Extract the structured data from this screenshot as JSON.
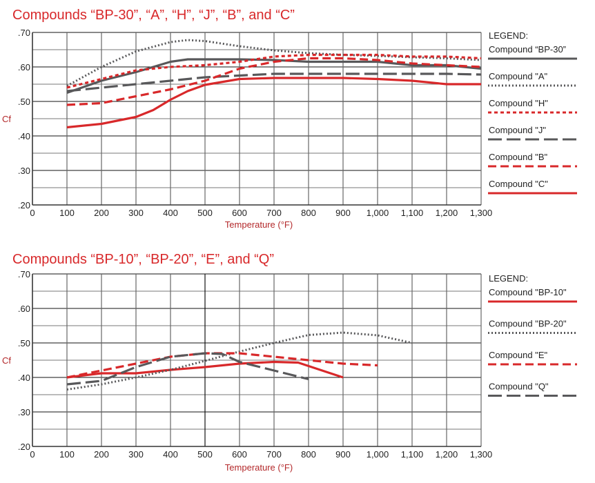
{
  "chart_data": [
    {
      "type": "line",
      "title": "Compounds “BP-30”, “A”, “H”, “J”, “B”, and “C”",
      "xlabel": "Temperature (°F)",
      "ylabel": "Cf",
      "xlim": [
        0,
        1300
      ],
      "ylim": [
        0.2,
        0.7
      ],
      "xticks": [
        0,
        100,
        200,
        300,
        400,
        500,
        600,
        700,
        800,
        900,
        1000,
        1100,
        1200,
        1300
      ],
      "xtick_labels": [
        "0",
        "100",
        "200",
        "300",
        "400",
        "500",
        "600",
        "700",
        "800",
        "900",
        "1,000",
        "1,100",
        "1,200",
        "1,300"
      ],
      "yticks": [
        0.2,
        0.3,
        0.4,
        0.5,
        0.6,
        0.7
      ],
      "ytick_labels": [
        ".20",
        ".30",
        ".40",
        ".50",
        ".60",
        ".70"
      ],
      "grid": true,
      "legend_title": "LEGEND:",
      "legend_placement": "right",
      "series": [
        {
          "name": "Compound “BP-30”",
          "color": "#58585a",
          "style": "solid",
          "x": [
            100,
            200,
            300,
            400,
            450,
            500,
            600,
            700,
            800,
            900,
            1000,
            1100,
            1200,
            1300
          ],
          "y": [
            0.525,
            0.56,
            0.585,
            0.615,
            0.622,
            0.622,
            0.622,
            0.62,
            0.615,
            0.615,
            0.615,
            0.605,
            0.605,
            0.595
          ]
        },
        {
          "name": "Compound \"A\"",
          "color": "#58585a",
          "style": "dotted",
          "x": [
            100,
            200,
            300,
            400,
            450,
            500,
            600,
            700,
            800,
            900,
            1000,
            1100,
            1200,
            1300
          ],
          "y": [
            0.545,
            0.6,
            0.645,
            0.672,
            0.678,
            0.675,
            0.66,
            0.648,
            0.64,
            0.635,
            0.632,
            0.628,
            0.625,
            0.62
          ]
        },
        {
          "name": "Compound \"H\"",
          "color": "#d8282a",
          "style": "short-dash",
          "x": [
            100,
            200,
            300,
            400,
            500,
            600,
            700,
            800,
            900,
            1000,
            1100,
            1200,
            1300
          ],
          "y": [
            0.54,
            0.565,
            0.59,
            0.6,
            0.605,
            0.615,
            0.63,
            0.635,
            0.635,
            0.635,
            0.63,
            0.63,
            0.625
          ]
        },
        {
          "name": "Compound \"J\"",
          "color": "#58585a",
          "style": "long-dash",
          "x": [
            100,
            200,
            300,
            400,
            500,
            600,
            700,
            800,
            900,
            1000,
            1100,
            1200,
            1300
          ],
          "y": [
            0.53,
            0.54,
            0.55,
            0.56,
            0.57,
            0.575,
            0.58,
            0.58,
            0.58,
            0.58,
            0.58,
            0.58,
            0.578
          ]
        },
        {
          "name": "Compound \"B\"",
          "color": "#d8282a",
          "style": "dashed",
          "x": [
            100,
            200,
            300,
            400,
            500,
            600,
            700,
            800,
            900,
            1000,
            1100,
            1200,
            1300
          ],
          "y": [
            0.49,
            0.495,
            0.515,
            0.535,
            0.56,
            0.595,
            0.615,
            0.625,
            0.625,
            0.62,
            0.61,
            0.605,
            0.6
          ]
        },
        {
          "name": "Compound \"C\"",
          "color": "#d8282a",
          "style": "solid",
          "x": [
            100,
            200,
            300,
            350,
            400,
            450,
            500,
            600,
            700,
            800,
            900,
            1000,
            1100,
            1200,
            1300
          ],
          "y": [
            0.425,
            0.435,
            0.455,
            0.475,
            0.505,
            0.53,
            0.548,
            0.565,
            0.568,
            0.568,
            0.568,
            0.565,
            0.56,
            0.55,
            0.55
          ]
        }
      ]
    },
    {
      "type": "line",
      "title": "Compounds “BP-10”, “BP-20”, “E”, and “Q”",
      "xlabel": "Temperature (°F)",
      "ylabel": "Cf",
      "xlim": [
        0,
        1300
      ],
      "ylim": [
        0.2,
        0.7
      ],
      "xticks": [
        0,
        100,
        200,
        300,
        400,
        500,
        600,
        700,
        800,
        900,
        1000,
        1100,
        1200,
        1300
      ],
      "xtick_labels": [
        "0",
        "100",
        "200",
        "300",
        "400",
        "500",
        "600",
        "700",
        "800",
        "900",
        "1,000",
        "1,100",
        "1,200",
        "1,300"
      ],
      "yticks": [
        0.2,
        0.3,
        0.4,
        0.5,
        0.6,
        0.7
      ],
      "ytick_labels": [
        ".20",
        ".30",
        ".40",
        ".50",
        ".60",
        ".70"
      ],
      "grid": true,
      "legend_title": "LEGEND:",
      "legend_placement": "right",
      "series": [
        {
          "name": "Compound \"BP-10\"",
          "color": "#d8282a",
          "style": "solid",
          "x": [
            100,
            200,
            300,
            400,
            500,
            600,
            700,
            770,
            900
          ],
          "y": [
            0.4,
            0.412,
            0.412,
            0.422,
            0.43,
            0.44,
            0.445,
            0.443,
            0.4
          ]
        },
        {
          "name": "Compound \"BP-20\"",
          "color": "#58585a",
          "style": "dotted",
          "x": [
            100,
            200,
            300,
            400,
            500,
            600,
            700,
            800,
            900,
            1000,
            1100
          ],
          "y": [
            0.365,
            0.38,
            0.4,
            0.422,
            0.448,
            0.475,
            0.5,
            0.523,
            0.53,
            0.522,
            0.5
          ]
        },
        {
          "name": "Compound \"E\"",
          "color": "#d8282a",
          "style": "dashed",
          "x": [
            100,
            200,
            300,
            400,
            500,
            600,
            700,
            800,
            900,
            1000
          ],
          "y": [
            0.4,
            0.42,
            0.44,
            0.46,
            0.47,
            0.47,
            0.46,
            0.45,
            0.44,
            0.435
          ]
        },
        {
          "name": "Compound \"Q\"",
          "color": "#58585a",
          "style": "long-dash",
          "x": [
            100,
            200,
            300,
            400,
            500,
            550,
            600,
            700,
            800
          ],
          "y": [
            0.38,
            0.39,
            0.43,
            0.46,
            0.47,
            0.468,
            0.445,
            0.42,
            0.395
          ]
        }
      ]
    }
  ]
}
